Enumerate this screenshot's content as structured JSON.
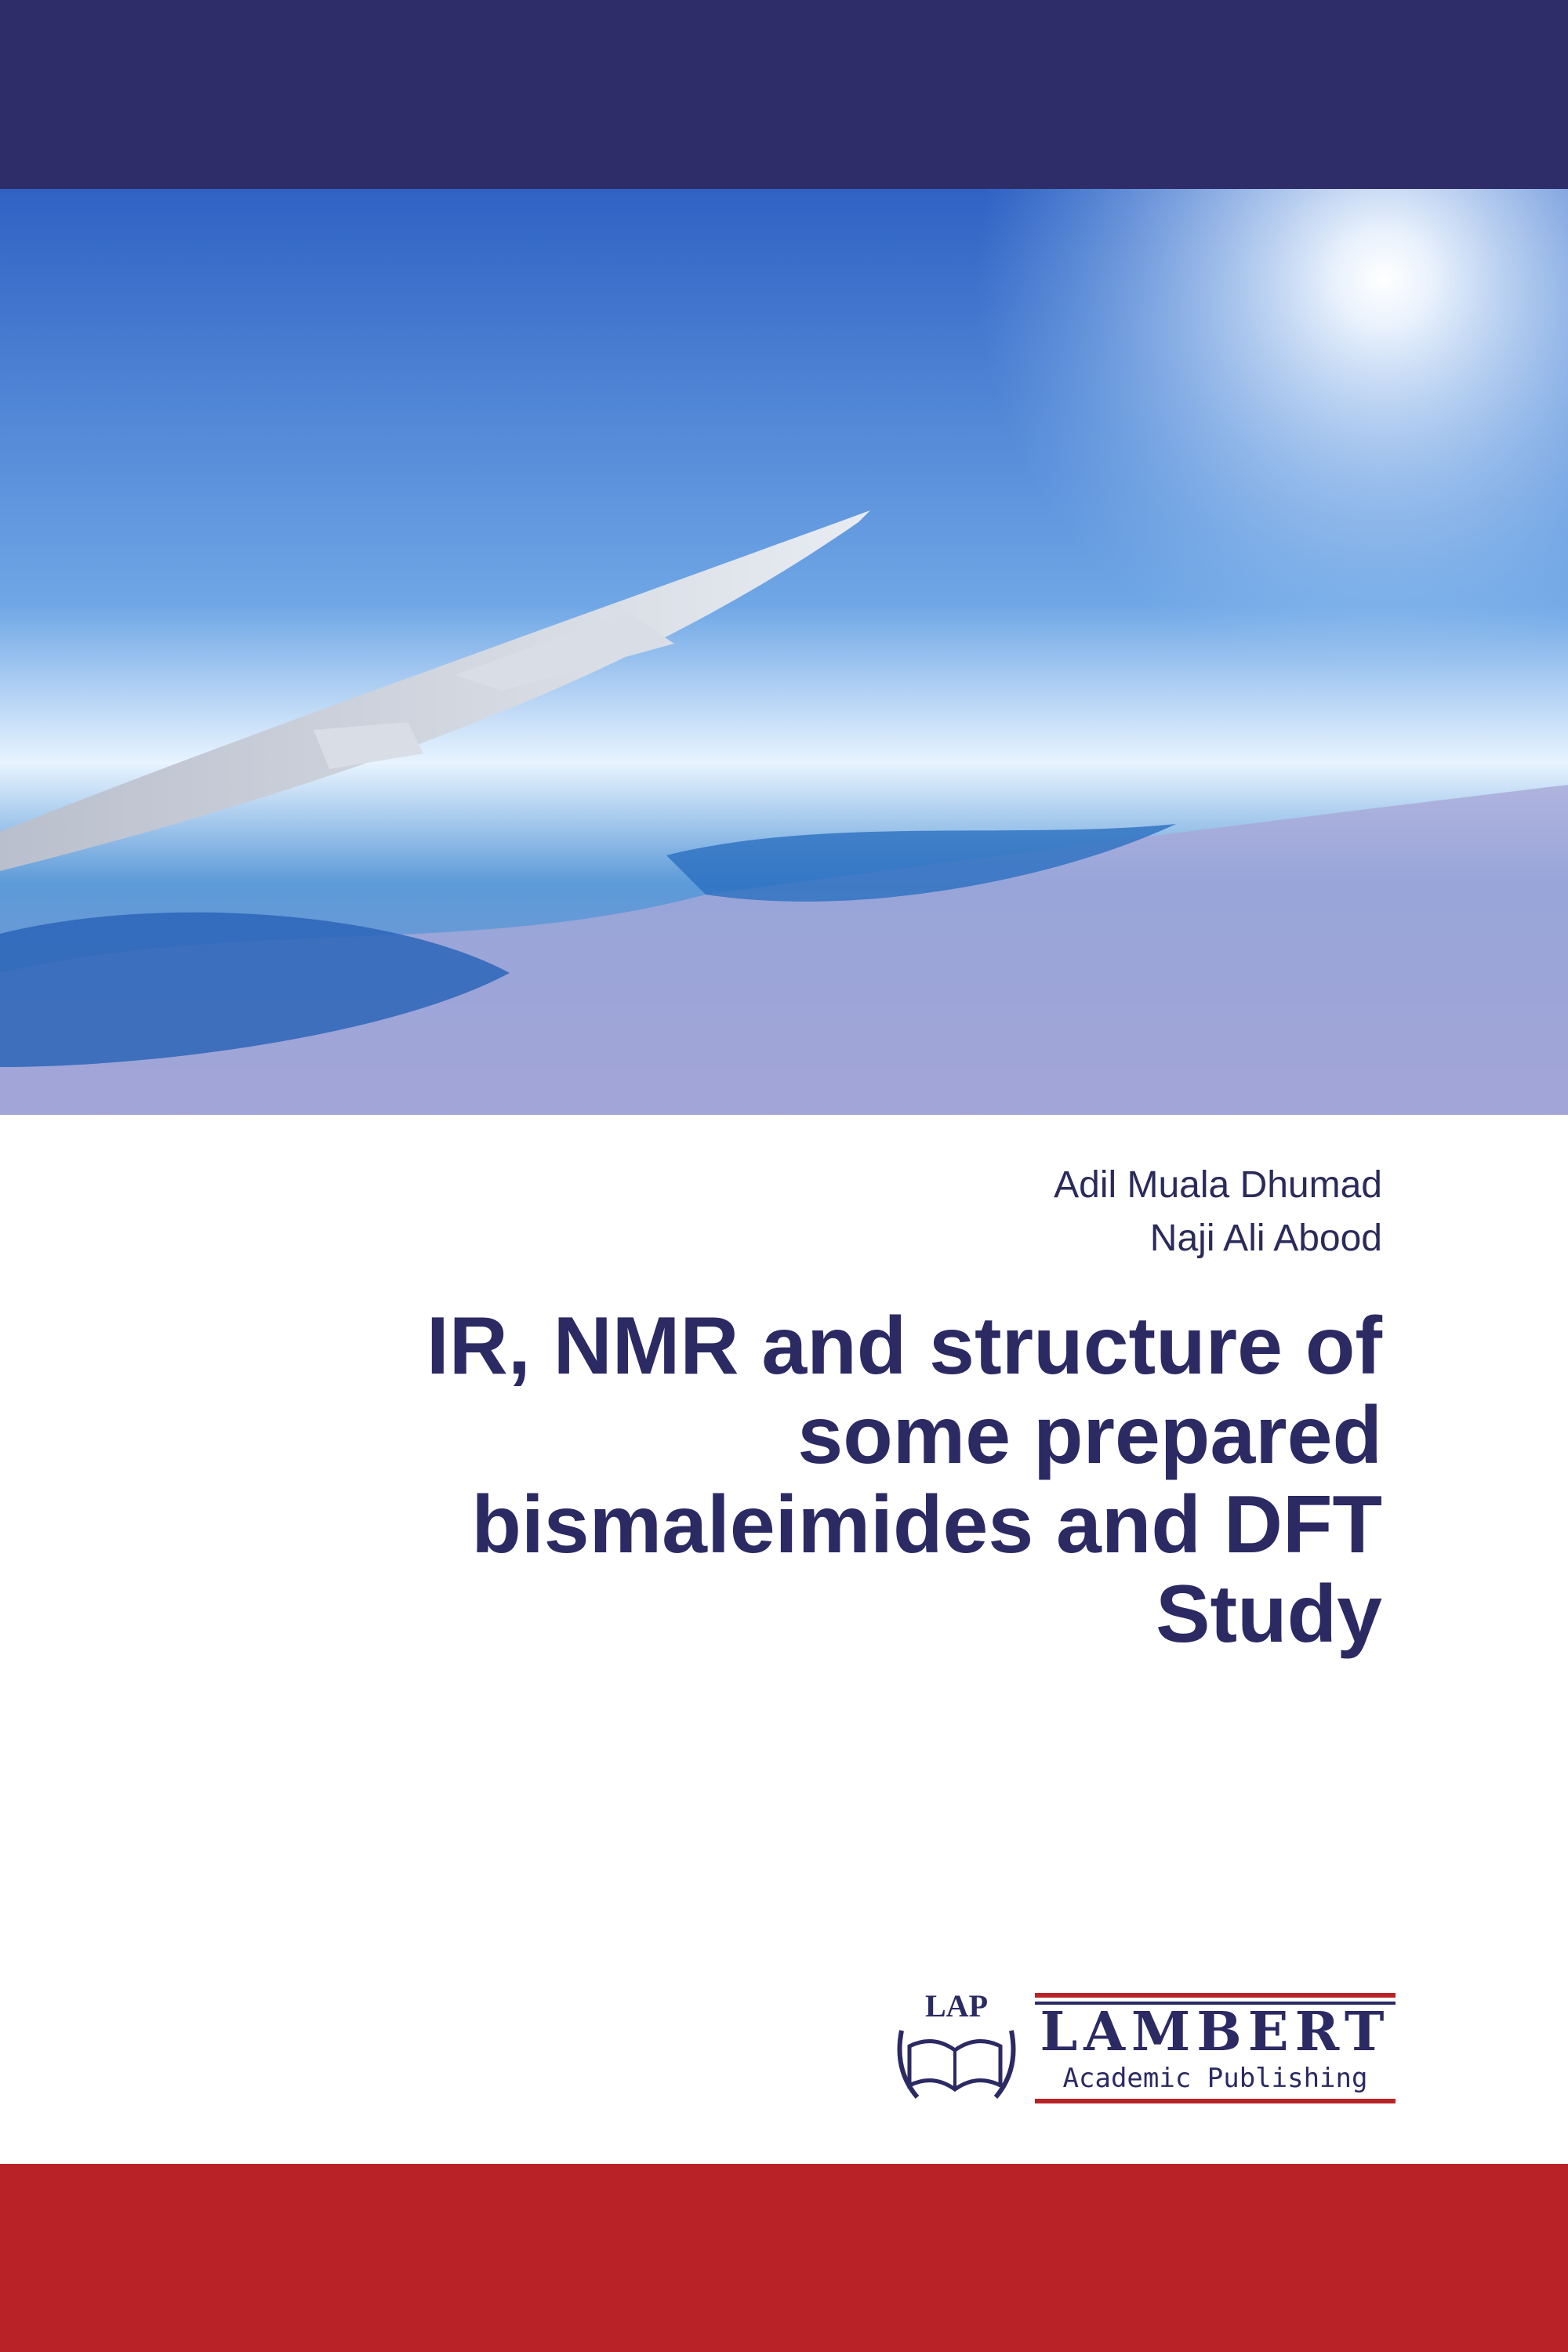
{
  "authors": [
    "Adil Muala Dhumad",
    "Naji Ali Abood"
  ],
  "title_lines": [
    "IR, NMR and structure of",
    "some prepared",
    "bismaleimides and DFT",
    "Study"
  ],
  "publisher": {
    "mark": "LAP",
    "name": "LAMBERT",
    "imprint": "Academic Publishing"
  }
}
